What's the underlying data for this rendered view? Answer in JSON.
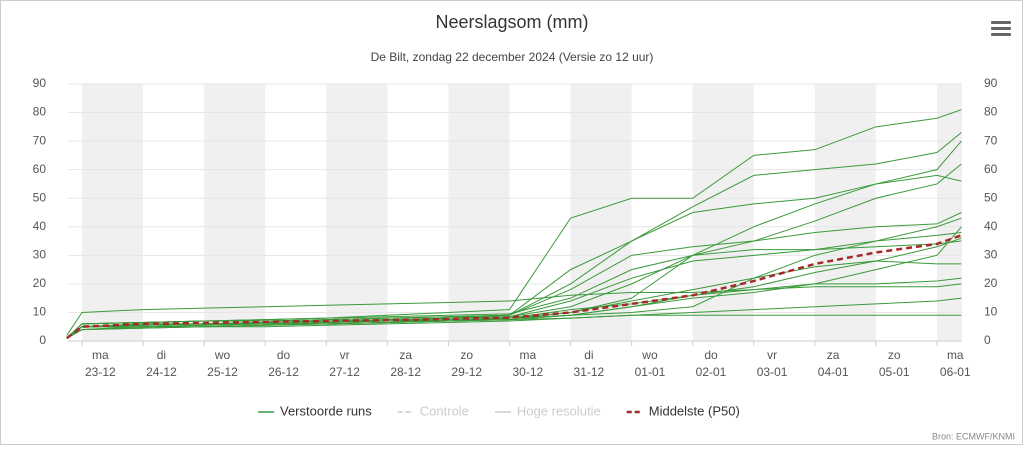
{
  "chart_data": {
    "type": "line",
    "title": "Neerslagsom (mm)",
    "subtitle": "De Bilt, zondag 22 december 2024 (Versie zo 12 uur)",
    "credit": "Bron: ECMWF/KNMI",
    "x": [
      -0.25,
      0,
      1,
      2,
      3,
      4,
      5,
      6,
      7,
      8,
      9,
      10,
      11,
      12,
      13,
      14,
      14.4
    ],
    "xlim": [
      -0.23,
      14.41
    ],
    "xticks": [
      {
        "value": 0,
        "label": [
          "ma",
          "23-12"
        ]
      },
      {
        "value": 1,
        "label": [
          "di",
          "24-12"
        ]
      },
      {
        "value": 2,
        "label": [
          "wo",
          "25-12"
        ]
      },
      {
        "value": 3,
        "label": [
          "do",
          "26-12"
        ]
      },
      {
        "value": 4,
        "label": [
          "vr",
          "27-12"
        ]
      },
      {
        "value": 5,
        "label": [
          "za",
          "28-12"
        ]
      },
      {
        "value": 6,
        "label": [
          "zo",
          "29-12"
        ]
      },
      {
        "value": 7,
        "label": [
          "ma",
          "30-12"
        ]
      },
      {
        "value": 8,
        "label": [
          "di",
          "31-12"
        ]
      },
      {
        "value": 9,
        "label": [
          "wo",
          "01-01"
        ]
      },
      {
        "value": 10,
        "label": [
          "do",
          "02-01"
        ]
      },
      {
        "value": 11,
        "label": [
          "vr",
          "03-01"
        ]
      },
      {
        "value": 12,
        "label": [
          "za",
          "04-01"
        ]
      },
      {
        "value": 13,
        "label": [
          "zo",
          "05-01"
        ]
      },
      {
        "value": 14,
        "label": [
          "ma",
          "06-01"
        ]
      }
    ],
    "ylim": [
      0,
      90
    ],
    "yticks": [
      0,
      10,
      20,
      30,
      40,
      50,
      60,
      70,
      80,
      90
    ],
    "y2lim": [
      0,
      90
    ],
    "y2ticks": [
      0,
      10,
      20,
      30,
      40,
      50,
      60,
      70,
      80,
      90
    ],
    "grid": true,
    "legend": "bottom",
    "series": [
      {
        "name": "Verstoorde runs",
        "color": "#3a9a3a",
        "runs": [
          [
            2,
            10,
            11,
            11.5,
            12,
            12.5,
            13,
            13.5,
            14,
            16,
            17,
            17,
            18,
            19,
            19,
            19,
            20
          ],
          [
            1,
            6,
            6.5,
            7,
            7.5,
            8,
            9,
            10,
            11,
            43,
            50,
            50,
            65,
            67,
            75,
            78,
            81
          ],
          [
            1,
            5,
            6,
            6,
            6.5,
            7,
            7,
            8,
            9,
            25,
            35,
            47,
            58,
            60,
            62,
            66,
            73
          ],
          [
            1,
            4,
            5,
            5.5,
            6,
            6.5,
            7,
            7.5,
            8,
            10,
            15,
            30,
            35,
            42,
            50,
            55,
            62
          ],
          [
            1,
            5,
            5.5,
            6,
            6.5,
            7,
            7.5,
            8,
            8.5,
            12,
            20,
            30,
            40,
            48,
            55,
            60,
            70
          ],
          [
            1,
            6,
            6.5,
            7,
            7,
            7.5,
            8,
            8.5,
            9,
            18,
            30,
            33,
            35,
            38,
            40,
            41,
            45
          ],
          [
            1,
            5,
            5,
            5.5,
            6,
            6,
            6.5,
            7,
            7.5,
            9,
            12,
            15,
            17,
            20,
            25,
            30,
            40
          ],
          [
            1,
            4,
            4.5,
            5,
            5,
            5.5,
            6,
            6.5,
            7,
            8,
            9,
            10,
            11,
            12,
            13,
            14,
            15
          ],
          [
            1,
            5,
            5.5,
            6,
            6,
            6.5,
            7,
            7.5,
            8,
            9,
            10,
            12,
            22,
            30,
            35,
            40,
            43
          ],
          [
            1,
            6,
            6.5,
            7,
            7.5,
            8,
            8.5,
            9,
            9.5,
            15,
            25,
            30,
            32,
            32,
            35,
            37,
            38
          ],
          [
            1,
            4,
            4.5,
            5,
            5.5,
            6,
            6.5,
            7,
            7.5,
            8,
            9,
            9,
            9,
            9,
            9,
            9,
            9
          ],
          [
            1,
            5,
            5.5,
            6,
            6.5,
            7,
            7,
            7.5,
            8,
            11,
            13,
            16,
            19,
            24,
            28,
            33,
            36
          ],
          [
            1,
            6,
            6.5,
            7,
            7,
            7.5,
            8,
            8.5,
            9,
            20,
            35,
            45,
            48,
            50,
            55,
            58,
            56
          ],
          [
            1,
            5,
            5,
            5.5,
            6,
            6.5,
            7,
            7,
            8,
            10,
            14,
            18,
            22,
            26,
            28,
            27,
            27
          ],
          [
            1,
            5,
            6,
            6,
            6.5,
            7,
            7.5,
            8,
            8.5,
            14,
            22,
            28,
            30,
            32,
            33,
            34,
            35
          ],
          [
            1,
            4,
            5,
            5,
            5.5,
            6,
            6.5,
            7,
            7.5,
            9,
            12,
            16,
            18,
            20,
            20,
            21,
            22
          ]
        ]
      },
      {
        "name": "Controle",
        "color": "#cccccc",
        "dash": true,
        "hidden": true
      },
      {
        "name": "Hoge resolutie",
        "color": "#cccccc",
        "hidden": true
      },
      {
        "name": "Middelste (P50)",
        "color": "#a52a2a",
        "dash": true,
        "values": [
          1,
          5,
          6,
          6.3,
          6.7,
          7,
          7.3,
          7.7,
          8.2,
          10,
          13,
          16,
          21,
          27,
          31,
          34,
          37
        ]
      }
    ]
  }
}
